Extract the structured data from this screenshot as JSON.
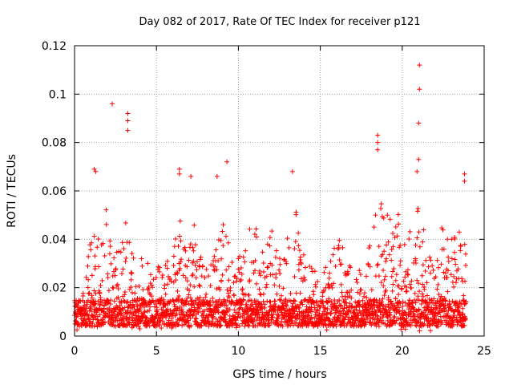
{
  "chart_data": {
    "type": "scatter",
    "title": "Day 082 of 2017, Rate Of TEC Index for receiver p121",
    "xlabel": "GPS time / hours",
    "ylabel": "ROTI / TECUs",
    "xlim": [
      0,
      25
    ],
    "ylim": [
      0,
      0.12
    ],
    "x_ticks": [
      0,
      5,
      10,
      15,
      20,
      25
    ],
    "y_ticks": [
      0,
      0.02,
      0.04,
      0.06,
      0.08,
      0.1,
      0.12
    ],
    "x_tick_labels": [
      "0",
      "5",
      "10",
      "15",
      "20",
      "25"
    ],
    "y_tick_labels": [
      "0",
      "0.02",
      "0.04",
      "0.06",
      "0.08",
      "0.1",
      "0.12"
    ],
    "grid": true,
    "marker": "+",
    "color": "#ff0000",
    "x_range_of_data": [
      0,
      23.9
    ],
    "notable_points": [
      {
        "x": 2.3,
        "y": 0.096
      },
      {
        "x": 3.25,
        "y": 0.092
      },
      {
        "x": 3.25,
        "y": 0.089
      },
      {
        "x": 3.25,
        "y": 0.085
      },
      {
        "x": 1.2,
        "y": 0.069
      },
      {
        "x": 1.3,
        "y": 0.068
      },
      {
        "x": 6.4,
        "y": 0.069
      },
      {
        "x": 6.4,
        "y": 0.067
      },
      {
        "x": 7.1,
        "y": 0.066
      },
      {
        "x": 8.7,
        "y": 0.066
      },
      {
        "x": 9.3,
        "y": 0.072
      },
      {
        "x": 13.3,
        "y": 0.068
      },
      {
        "x": 18.5,
        "y": 0.083
      },
      {
        "x": 18.5,
        "y": 0.08
      },
      {
        "x": 18.5,
        "y": 0.077
      },
      {
        "x": 21.05,
        "y": 0.112
      },
      {
        "x": 21.05,
        "y": 0.102
      },
      {
        "x": 21.0,
        "y": 0.088
      },
      {
        "x": 21.0,
        "y": 0.073
      },
      {
        "x": 20.9,
        "y": 0.068
      },
      {
        "x": 23.8,
        "y": 0.067
      },
      {
        "x": 23.8,
        "y": 0.064
      }
    ],
    "envelope": [
      {
        "x": 0.0,
        "y": 0.015
      },
      {
        "x": 0.5,
        "y": 0.018
      },
      {
        "x": 0.8,
        "y": 0.038
      },
      {
        "x": 1.2,
        "y": 0.06
      },
      {
        "x": 1.6,
        "y": 0.035
      },
      {
        "x": 1.9,
        "y": 0.055
      },
      {
        "x": 2.3,
        "y": 0.032
      },
      {
        "x": 2.8,
        "y": 0.04
      },
      {
        "x": 3.2,
        "y": 0.05
      },
      {
        "x": 3.8,
        "y": 0.03
      },
      {
        "x": 4.2,
        "y": 0.035
      },
      {
        "x": 4.8,
        "y": 0.025
      },
      {
        "x": 5.3,
        "y": 0.035
      },
      {
        "x": 5.8,
        "y": 0.03
      },
      {
        "x": 6.4,
        "y": 0.05
      },
      {
        "x": 6.8,
        "y": 0.035
      },
      {
        "x": 7.2,
        "y": 0.05
      },
      {
        "x": 7.8,
        "y": 0.03
      },
      {
        "x": 8.3,
        "y": 0.035
      },
      {
        "x": 8.8,
        "y": 0.05
      },
      {
        "x": 9.3,
        "y": 0.048
      },
      {
        "x": 9.8,
        "y": 0.03
      },
      {
        "x": 10.5,
        "y": 0.04
      },
      {
        "x": 11.0,
        "y": 0.055
      },
      {
        "x": 11.6,
        "y": 0.04
      },
      {
        "x": 12.2,
        "y": 0.045
      },
      {
        "x": 12.7,
        "y": 0.03
      },
      {
        "x": 13.3,
        "y": 0.06
      },
      {
        "x": 13.9,
        "y": 0.04
      },
      {
        "x": 14.5,
        "y": 0.03
      },
      {
        "x": 15.0,
        "y": 0.033
      },
      {
        "x": 15.6,
        "y": 0.035
      },
      {
        "x": 16.1,
        "y": 0.045
      },
      {
        "x": 16.6,
        "y": 0.03
      },
      {
        "x": 17.2,
        "y": 0.028
      },
      {
        "x": 17.8,
        "y": 0.03
      },
      {
        "x": 18.5,
        "y": 0.06
      },
      {
        "x": 19.1,
        "y": 0.05
      },
      {
        "x": 19.6,
        "y": 0.055
      },
      {
        "x": 20.1,
        "y": 0.045
      },
      {
        "x": 20.6,
        "y": 0.05
      },
      {
        "x": 21.1,
        "y": 0.055
      },
      {
        "x": 21.5,
        "y": 0.04
      },
      {
        "x": 22.0,
        "y": 0.03
      },
      {
        "x": 22.5,
        "y": 0.05
      },
      {
        "x": 23.0,
        "y": 0.04
      },
      {
        "x": 23.5,
        "y": 0.045
      },
      {
        "x": 23.9,
        "y": 0.04
      }
    ],
    "baseline_range": [
      0.004,
      0.015
    ],
    "minimum_y": 0.002
  }
}
